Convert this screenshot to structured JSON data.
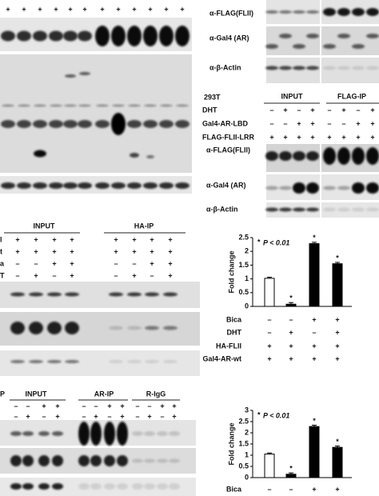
{
  "panel_a": {
    "signs": [
      "+",
      "+",
      "+",
      "+",
      "+",
      "+",
      "+",
      "+",
      "+",
      "+",
      "+",
      "+"
    ]
  },
  "panel_b": {
    "blot_labels": [
      "α-FLAG(FLII)",
      "α-Gal4 (AR)",
      "α-β-Actin"
    ]
  },
  "panel_c": {
    "cell_line": "293T",
    "groups": [
      "INPUT",
      "FLAG-IP"
    ],
    "rows": [
      {
        "label": "DHT",
        "signs": [
          "–",
          "+",
          "–",
          "+",
          "–",
          "+",
          "–",
          "+"
        ]
      },
      {
        "label": "Gal4-AR-LBD",
        "signs": [
          "–",
          "–",
          "+",
          "+",
          "–",
          "–",
          "+",
          "+"
        ]
      },
      {
        "label": "FLAG-FLII-LRR",
        "signs": [
          "+",
          "+",
          "+",
          "+",
          "+",
          "+",
          "+",
          "+"
        ]
      }
    ],
    "blot_labels": [
      "α-FLAG(FLII)",
      "α-Gal4 (AR)",
      "α-β-Actin"
    ]
  },
  "panel_d": {
    "groups": [
      "INPUT",
      "HA-IP"
    ],
    "rows": [
      {
        "label": "l",
        "signs": [
          "+",
          "+",
          "+",
          "+",
          "+",
          "+",
          "+",
          "+"
        ]
      },
      {
        "label": "t",
        "signs": [
          "+",
          "+",
          "+",
          "+",
          "+",
          "+",
          "+",
          "+"
        ]
      },
      {
        "label": "a",
        "signs": [
          "–",
          "–",
          "+",
          "+",
          "–",
          "–",
          "+",
          "+"
        ]
      },
      {
        "label": "T",
        "signs": [
          "–",
          "+",
          "–",
          "+",
          "–",
          "+",
          "–",
          "+"
        ]
      }
    ]
  },
  "panel_f": {
    "cropped_label": "P",
    "groups": [
      "INPUT",
      "AR-IP",
      "R-IgG"
    ],
    "rows": [
      {
        "signs": [
          "–",
          "–",
          "+",
          "+",
          "–",
          "–",
          "+",
          "+",
          "–",
          "–",
          "+",
          "+"
        ]
      },
      {
        "signs": [
          "–",
          "+",
          "–",
          "+",
          "–",
          "+",
          "–",
          "+",
          "–",
          "+",
          "–",
          "+"
        ]
      }
    ]
  },
  "chart_data": [
    {
      "type": "bar",
      "ylabel": "Fold change",
      "annotation_mark": "*",
      "annotation": "P < 0.01",
      "values": [
        1.02,
        0.08,
        2.28,
        1.55
      ],
      "errors": [
        0.04,
        0.06,
        0.05,
        0.05
      ],
      "colors": [
        "#ffffff",
        "#000000",
        "#000000",
        "#000000"
      ],
      "star_labels": [
        null,
        "*",
        "*",
        "*"
      ],
      "ylim": [
        0,
        2.5
      ],
      "yticks": [
        0,
        0.5,
        1,
        1.5,
        2,
        2.5
      ],
      "conditions": [
        {
          "label": "Bica",
          "signs": [
            "–",
            "–",
            "+",
            "+"
          ]
        },
        {
          "label": "DHT",
          "signs": [
            "–",
            "+",
            "–",
            "+"
          ]
        },
        {
          "label": "HA-FLII",
          "signs": [
            "+",
            "+",
            "+",
            "+"
          ]
        },
        {
          "label": "Gal4-AR-wt",
          "signs": [
            "+",
            "+",
            "+",
            "+"
          ]
        }
      ]
    },
    {
      "type": "bar",
      "ylabel": "Fold change",
      "annotation_mark": "*",
      "annotation": "P < 0.01",
      "values": [
        1.05,
        0.15,
        2.28,
        1.35
      ],
      "errors": [
        0.05,
        0.06,
        0.06,
        0.06
      ],
      "colors": [
        "#ffffff",
        "#000000",
        "#000000",
        "#000000"
      ],
      "star_labels": [
        null,
        "*",
        "*",
        "*"
      ],
      "ylim": [
        0,
        3
      ],
      "yticks": [
        0,
        0.5,
        1,
        1.5,
        2,
        2.5,
        3
      ],
      "conditions": [
        {
          "label": "Bica",
          "signs": [
            "–",
            "–",
            "+",
            "+"
          ]
        }
      ]
    }
  ]
}
